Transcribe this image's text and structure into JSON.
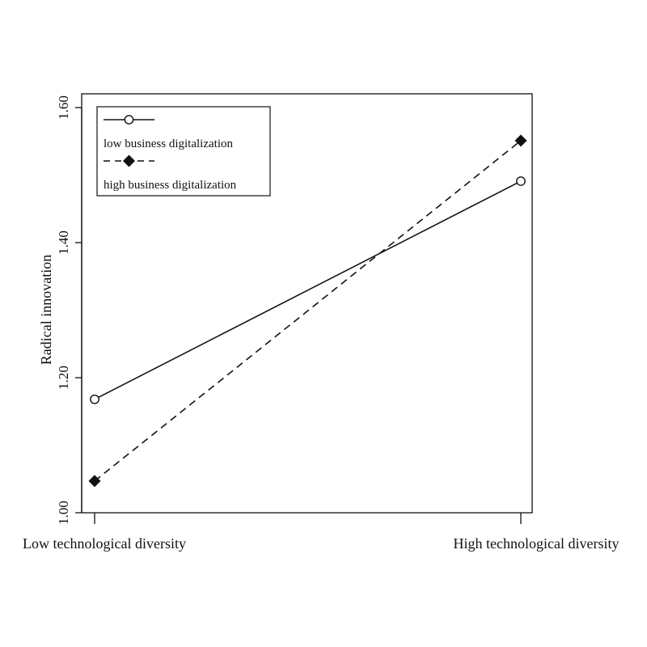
{
  "chart_data": {
    "type": "line",
    "categories": [
      "Low technological diversity",
      "High technological diversity"
    ],
    "ylabel": "Radical innovation",
    "xlabel": "",
    "ylim": [
      1.0,
      1.6
    ],
    "yticks": [
      "1.00",
      "1.20",
      "1.40",
      "1.60"
    ],
    "ytick_values": [
      1.0,
      1.2,
      1.4,
      1.6
    ],
    "grid": false,
    "legend_position": "top-left",
    "series": [
      {
        "name": "low business digitalization",
        "values": [
          1.168,
          1.491
        ],
        "marker": "open-circle",
        "line_style": "solid",
        "color": "#111111"
      },
      {
        "name": "high business digitalization",
        "values": [
          1.047,
          1.551
        ],
        "marker": "filled-diamond",
        "line_style": "dashed",
        "color": "#111111"
      }
    ]
  }
}
